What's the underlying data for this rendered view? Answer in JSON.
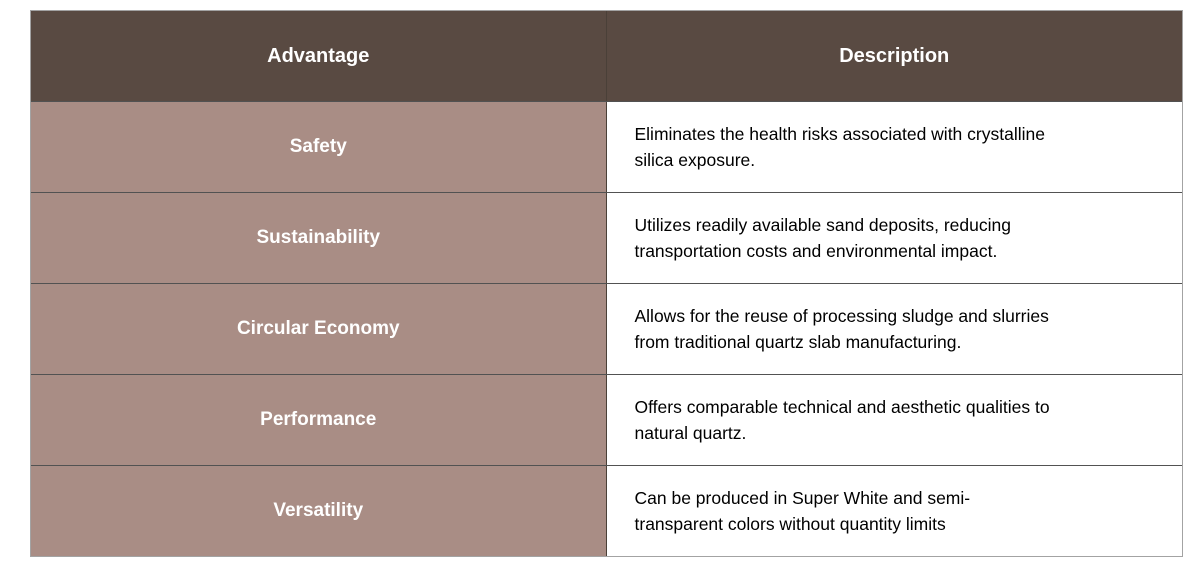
{
  "colors": {
    "header_bg": "#594a42",
    "advantage_cell_bg": "#a98d85",
    "header_text": "#ffffff",
    "advantage_text": "#ffffff",
    "description_text": "#000000",
    "outer_border": "#a3a3a3",
    "inner_border": "#525252"
  },
  "table": {
    "headers": [
      {
        "label": "Advantage"
      },
      {
        "label": "Description"
      }
    ],
    "rows": [
      {
        "advantage": "Safety",
        "description": "Eliminates the health risks associated with crystalline\nsilica exposure."
      },
      {
        "advantage": "Sustainability",
        "description": "Utilizes readily available sand deposits, reducing\ntransportation costs and environmental impact."
      },
      {
        "advantage": "Circular Economy",
        "description": "Allows for the reuse of processing sludge and slurries\nfrom traditional quartz slab manufacturing."
      },
      {
        "advantage": "Performance",
        "description": "Offers comparable technical and aesthetic qualities to\nnatural quartz."
      },
      {
        "advantage": "Versatility",
        "description": "Can be produced in Super White and semi-\ntransparent colors without quantity limits"
      }
    ]
  }
}
